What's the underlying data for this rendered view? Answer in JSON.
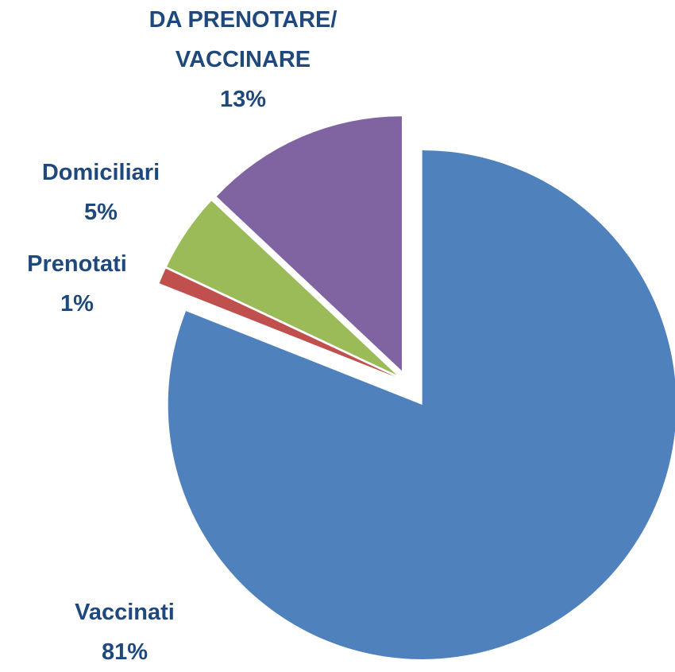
{
  "chart_data": {
    "type": "pie",
    "categories": [
      "Vaccinati",
      "Prenotati",
      "Domiciliari",
      "DA PRENOTARE/ VACCINARE"
    ],
    "values": [
      81,
      1,
      5,
      13
    ],
    "value_labels": [
      "81%",
      "1%",
      "5%",
      "13%"
    ],
    "colors": [
      "#4F81BD",
      "#C0504D",
      "#9BBB59",
      "#8064A2"
    ]
  }
}
